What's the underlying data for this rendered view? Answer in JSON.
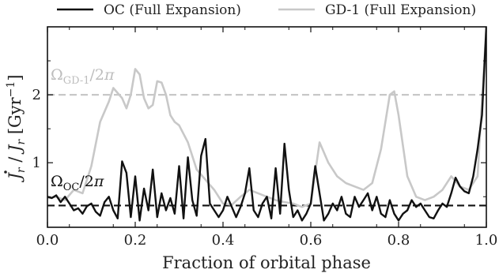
{
  "chart_data": {
    "type": "line",
    "xlabel": "Fraction of orbital phase",
    "ylabel": "J̇r / Jr [Gyr⁻¹]",
    "xlim": [
      0,
      1
    ],
    "ylim": [
      0.05,
      3.0
    ],
    "x_ticks": [
      0.0,
      0.2,
      0.4,
      0.6,
      0.8,
      1.0
    ],
    "x_tick_labels": [
      "0.0",
      "0.2",
      "0.4",
      "0.6",
      "0.8",
      "1.0"
    ],
    "y_ticks": [
      1,
      2
    ],
    "y_tick_labels": [
      "1",
      "2"
    ],
    "grid": false,
    "legend_position": "top, above plot",
    "series": [
      {
        "name": "OC (Full Expansion)",
        "color": "#111111",
        "x": [
          0.0,
          0.01,
          0.02,
          0.03,
          0.04,
          0.05,
          0.06,
          0.07,
          0.08,
          0.09,
          0.1,
          0.11,
          0.12,
          0.13,
          0.14,
          0.15,
          0.16,
          0.17,
          0.18,
          0.19,
          0.2,
          0.21,
          0.22,
          0.23,
          0.24,
          0.25,
          0.26,
          0.27,
          0.28,
          0.29,
          0.3,
          0.31,
          0.32,
          0.33,
          0.34,
          0.35,
          0.36,
          0.37,
          0.38,
          0.39,
          0.4,
          0.41,
          0.42,
          0.43,
          0.44,
          0.45,
          0.46,
          0.47,
          0.48,
          0.49,
          0.5,
          0.51,
          0.52,
          0.53,
          0.54,
          0.55,
          0.56,
          0.57,
          0.58,
          0.59,
          0.6,
          0.61,
          0.62,
          0.63,
          0.64,
          0.65,
          0.66,
          0.67,
          0.68,
          0.69,
          0.7,
          0.71,
          0.72,
          0.73,
          0.74,
          0.75,
          0.76,
          0.77,
          0.78,
          0.79,
          0.8,
          0.81,
          0.82,
          0.83,
          0.84,
          0.85,
          0.86,
          0.87,
          0.88,
          0.89,
          0.9,
          0.91,
          0.92,
          0.93,
          0.94,
          0.95,
          0.96,
          0.97,
          0.98,
          0.99,
          1.0
        ],
        "values": [
          0.5,
          0.48,
          0.52,
          0.42,
          0.5,
          0.4,
          0.3,
          0.33,
          0.25,
          0.36,
          0.4,
          0.28,
          0.22,
          0.42,
          0.5,
          0.3,
          0.18,
          1.02,
          0.85,
          0.2,
          0.8,
          0.15,
          0.62,
          0.3,
          0.9,
          0.2,
          0.55,
          0.3,
          0.48,
          0.25,
          0.95,
          0.18,
          1.08,
          0.45,
          0.22,
          1.1,
          1.35,
          0.4,
          0.3,
          0.2,
          0.3,
          0.5,
          0.35,
          0.2,
          0.35,
          0.55,
          0.92,
          0.3,
          0.2,
          0.4,
          0.5,
          0.18,
          0.92,
          0.25,
          1.28,
          0.6,
          0.2,
          0.3,
          0.15,
          0.25,
          0.4,
          0.95,
          0.55,
          0.15,
          0.25,
          0.4,
          0.3,
          0.5,
          0.25,
          0.2,
          0.5,
          0.35,
          0.45,
          0.55,
          0.3,
          0.5,
          0.25,
          0.2,
          0.45,
          0.25,
          0.15,
          0.25,
          0.3,
          0.45,
          0.35,
          0.4,
          0.3,
          0.2,
          0.18,
          0.3,
          0.4,
          0.35,
          0.55,
          0.78,
          0.65,
          0.58,
          0.55,
          0.8,
          1.2,
          1.7,
          3.0
        ]
      },
      {
        "name": "GD-1 (Full Expansion)",
        "color": "#c8c8c8",
        "x": [
          0.0,
          0.02,
          0.04,
          0.06,
          0.08,
          0.1,
          0.12,
          0.14,
          0.15,
          0.17,
          0.18,
          0.19,
          0.2,
          0.21,
          0.22,
          0.23,
          0.24,
          0.25,
          0.26,
          0.27,
          0.28,
          0.29,
          0.3,
          0.32,
          0.34,
          0.36,
          0.38,
          0.4,
          0.42,
          0.44,
          0.46,
          0.48,
          0.5,
          0.52,
          0.54,
          0.56,
          0.58,
          0.6,
          0.62,
          0.64,
          0.66,
          0.68,
          0.7,
          0.72,
          0.74,
          0.76,
          0.78,
          0.79,
          0.8,
          0.82,
          0.84,
          0.86,
          0.88,
          0.9,
          0.92,
          0.94,
          0.96,
          0.98,
          1.0
        ],
        "values": [
          0.48,
          0.5,
          0.45,
          0.6,
          0.55,
          0.95,
          1.6,
          1.9,
          2.1,
          1.95,
          1.8,
          2.0,
          2.38,
          2.3,
          1.95,
          1.8,
          1.85,
          2.2,
          2.18,
          2.0,
          1.7,
          1.6,
          1.55,
          1.3,
          0.9,
          0.75,
          0.6,
          0.4,
          0.38,
          0.5,
          0.6,
          0.55,
          0.5,
          0.45,
          0.42,
          0.4,
          0.35,
          0.4,
          1.3,
          1.0,
          0.8,
          0.7,
          0.65,
          0.6,
          0.7,
          1.2,
          2.0,
          2.05,
          1.7,
          0.8,
          0.5,
          0.45,
          0.5,
          0.6,
          0.8,
          0.65,
          0.6,
          0.8,
          3.0
        ]
      }
    ],
    "reference_lines": [
      {
        "label": "Ω_GD-1/2π",
        "y": 2.0,
        "color": "#c8c8c8",
        "style": "dashed"
      },
      {
        "label": "Ω_OC/2π",
        "y": 0.37,
        "color": "#111111",
        "style": "dashed"
      }
    ]
  }
}
